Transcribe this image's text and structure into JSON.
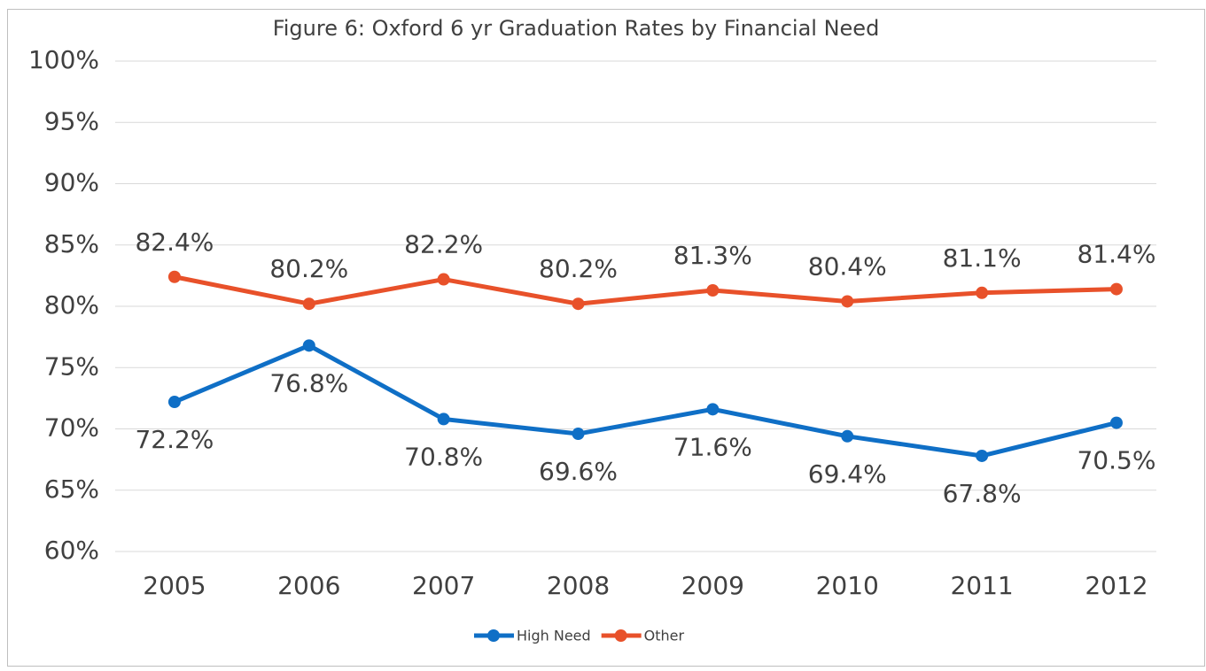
{
  "chart_data": {
    "type": "line",
    "title": "Figure 6: Oxford 6 yr Graduation Rates by Financial Need",
    "categories": [
      "2005",
      "2006",
      "2007",
      "2008",
      "2009",
      "2010",
      "2011",
      "2012"
    ],
    "series": [
      {
        "name": "High Need",
        "color": "#0f6fc6",
        "values": [
          72.2,
          76.8,
          70.8,
          69.6,
          71.6,
          69.4,
          67.8,
          70.5
        ],
        "value_labels": [
          "72.2%",
          "76.8%",
          "70.8%",
          "69.6%",
          "71.6%",
          "69.4%",
          "67.8%",
          "70.5%"
        ]
      },
      {
        "name": "Other",
        "color": "#e8512a",
        "values": [
          82.4,
          80.2,
          82.2,
          80.2,
          81.3,
          80.4,
          81.1,
          81.4
        ],
        "value_labels": [
          "82.4%",
          "80.2%",
          "82.2%",
          "80.2%",
          "81.3%",
          "80.4%",
          "81.1%",
          "81.4%"
        ]
      }
    ],
    "ylim": [
      60,
      100
    ],
    "yticks": [
      {
        "value": 60,
        "label": "60%"
      },
      {
        "value": 65,
        "label": "65%"
      },
      {
        "value": 70,
        "label": "70%"
      },
      {
        "value": 75,
        "label": "75%"
      },
      {
        "value": 80,
        "label": "80%"
      },
      {
        "value": 85,
        "label": "85%"
      },
      {
        "value": 90,
        "label": "90%"
      },
      {
        "value": 95,
        "label": "95%"
      },
      {
        "value": 100,
        "label": "100%"
      }
    ],
    "grid": true,
    "legend": "bottom"
  }
}
